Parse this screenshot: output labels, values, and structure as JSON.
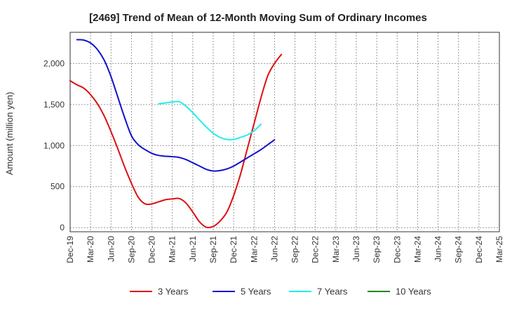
{
  "chart_data": {
    "type": "line",
    "title": "[2469]  Trend of Mean of 12-Month Moving Sum of Ordinary Incomes",
    "ylabel": "Amount (million yen)",
    "xlabel": "",
    "ylim": [
      -50,
      2380
    ],
    "yticks": [
      0,
      500,
      1000,
      1500,
      2000
    ],
    "ytick_labels": [
      "0",
      "500",
      "1,000",
      "1,500",
      "2,000"
    ],
    "xticks": [
      "Dec-19",
      "Mar-20",
      "Jun-20",
      "Sep-20",
      "Dec-20",
      "Mar-21",
      "Jun-21",
      "Sep-21",
      "Dec-21",
      "Mar-22",
      "Jun-22",
      "Sep-22",
      "Dec-22",
      "Mar-23",
      "Jun-23",
      "Sep-23",
      "Dec-23",
      "Mar-24",
      "Jun-24",
      "Sep-24",
      "Dec-24",
      "Mar-25"
    ],
    "grid": true,
    "legend_position": "bottom",
    "series": [
      {
        "name": "3 Years",
        "color": "#dd1111",
        "points": [
          [
            0,
            1790
          ],
          [
            1,
            1740
          ],
          [
            2,
            1700
          ],
          [
            3,
            1620
          ],
          [
            4,
            1510
          ],
          [
            5,
            1360
          ],
          [
            6,
            1170
          ],
          [
            7,
            960
          ],
          [
            8,
            740
          ],
          [
            9,
            540
          ],
          [
            10,
            370
          ],
          [
            11,
            290
          ],
          [
            12,
            290
          ],
          [
            13,
            315
          ],
          [
            14,
            340
          ],
          [
            15,
            350
          ],
          [
            16,
            355
          ],
          [
            17,
            300
          ],
          [
            18,
            190
          ],
          [
            19,
            70
          ],
          [
            20,
            5
          ],
          [
            21,
            15
          ],
          [
            22,
            80
          ],
          [
            23,
            190
          ],
          [
            24,
            390
          ],
          [
            25,
            650
          ],
          [
            26,
            960
          ],
          [
            27,
            1270
          ],
          [
            28,
            1580
          ],
          [
            29,
            1850
          ],
          [
            30,
            2000
          ],
          [
            31,
            2110
          ]
        ]
      },
      {
        "name": "5 Years",
        "color": "#1111cc",
        "points": [
          [
            1,
            2290
          ],
          [
            2,
            2285
          ],
          [
            3,
            2250
          ],
          [
            4,
            2170
          ],
          [
            5,
            2040
          ],
          [
            6,
            1840
          ],
          [
            7,
            1590
          ],
          [
            8,
            1340
          ],
          [
            9,
            1120
          ],
          [
            10,
            1010
          ],
          [
            11,
            950
          ],
          [
            12,
            905
          ],
          [
            13,
            880
          ],
          [
            14,
            870
          ],
          [
            15,
            865
          ],
          [
            16,
            855
          ],
          [
            17,
            830
          ],
          [
            18,
            790
          ],
          [
            19,
            750
          ],
          [
            20,
            710
          ],
          [
            21,
            690
          ],
          [
            22,
            695
          ],
          [
            23,
            715
          ],
          [
            24,
            750
          ],
          [
            25,
            800
          ],
          [
            26,
            850
          ],
          [
            27,
            900
          ],
          [
            28,
            950
          ],
          [
            29,
            1010
          ],
          [
            30,
            1070
          ]
        ]
      },
      {
        "name": "7 Years",
        "color": "#22eeee",
        "points": [
          [
            13,
            1510
          ],
          [
            14,
            1520
          ],
          [
            15,
            1530
          ],
          [
            16,
            1535
          ],
          [
            17,
            1480
          ],
          [
            18,
            1400
          ],
          [
            19,
            1310
          ],
          [
            20,
            1225
          ],
          [
            21,
            1150
          ],
          [
            22,
            1100
          ],
          [
            23,
            1075
          ],
          [
            24,
            1075
          ],
          [
            25,
            1100
          ],
          [
            26,
            1130
          ],
          [
            27,
            1180
          ],
          [
            28,
            1260
          ]
        ]
      },
      {
        "name": "10 Years",
        "color": "#228822",
        "points": []
      }
    ]
  }
}
